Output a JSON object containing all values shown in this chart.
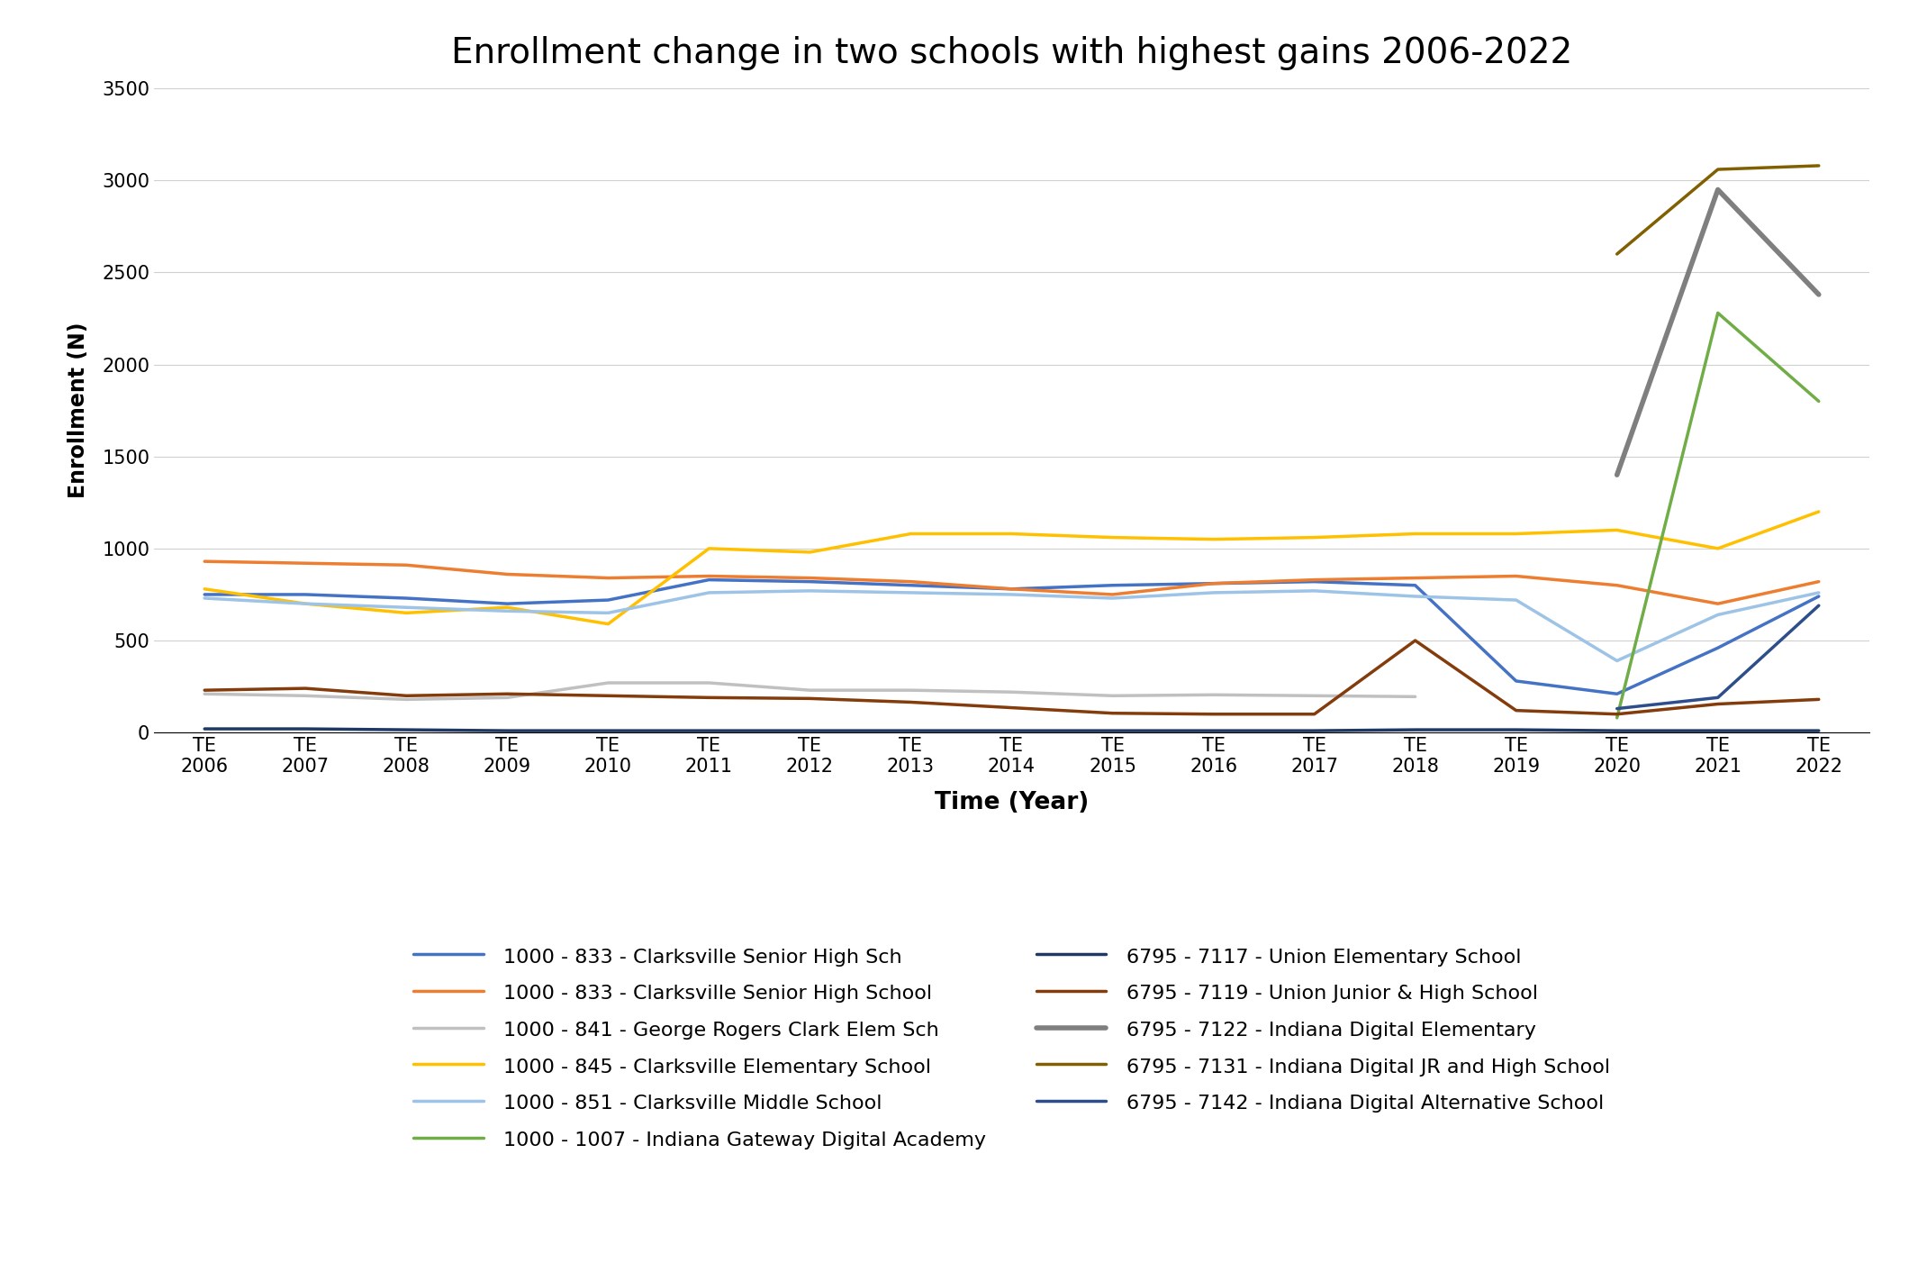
{
  "title": "Enrollment change in two schools with highest gains 2006-2022",
  "xlabel": "Time (Year)",
  "ylabel": "Enrollment (N)",
  "years": [
    2006,
    2007,
    2008,
    2009,
    2010,
    2011,
    2012,
    2013,
    2014,
    2015,
    2016,
    2017,
    2018,
    2019,
    2020,
    2021,
    2022
  ],
  "ylim": [
    0,
    3500
  ],
  "yticks": [
    0,
    500,
    1000,
    1500,
    2000,
    2500,
    3000,
    3500
  ],
  "series": [
    {
      "label": "1000 - 833 - Clarksville Senior High Sch",
      "color": "#4472C4",
      "linewidth": 2.5,
      "data": [
        750,
        750,
        730,
        700,
        720,
        830,
        820,
        800,
        780,
        800,
        810,
        820,
        800,
        280,
        210,
        460,
        740
      ]
    },
    {
      "label": "1000 - 833 - Clarksville Senior High School",
      "color": "#ED7D31",
      "linewidth": 2.5,
      "data": [
        930,
        920,
        910,
        860,
        840,
        850,
        840,
        820,
        780,
        750,
        810,
        830,
        840,
        850,
        800,
        700,
        820
      ]
    },
    {
      "label": "1000 - 841 - George Rogers Clark Elem Sch",
      "color": "#C0C0C0",
      "linewidth": 2.5,
      "data": [
        210,
        200,
        180,
        190,
        270,
        270,
        230,
        230,
        220,
        200,
        205,
        200,
        195,
        null,
        null,
        null,
        null
      ]
    },
    {
      "label": "1000 - 845 - Clarksville Elementary School",
      "color": "#FFC000",
      "linewidth": 2.5,
      "data": [
        780,
        700,
        650,
        680,
        590,
        1000,
        980,
        1080,
        1080,
        1060,
        1050,
        1060,
        1080,
        1080,
        1100,
        1000,
        1200
      ]
    },
    {
      "label": "1000 - 851 - Clarksville Middle School",
      "color": "#9DC3E6",
      "linewidth": 2.5,
      "data": [
        730,
        700,
        680,
        660,
        650,
        760,
        770,
        760,
        750,
        730,
        760,
        770,
        740,
        720,
        390,
        640,
        760
      ]
    },
    {
      "label": "1000 - 1007 - Indiana Gateway Digital Academy",
      "color": "#70AD47",
      "linewidth": 2.5,
      "data": [
        null,
        null,
        null,
        null,
        null,
        null,
        null,
        null,
        null,
        null,
        null,
        null,
        null,
        null,
        80,
        2280,
        1800
      ]
    },
    {
      "label": "6795 - 7117 - Union Elementary School",
      "color": "#1F3864",
      "linewidth": 2.5,
      "data": [
        20,
        20,
        15,
        10,
        10,
        10,
        10,
        10,
        10,
        10,
        10,
        10,
        15,
        15,
        10,
        10,
        10
      ]
    },
    {
      "label": "6795 - 7119 - Union Junior & High School",
      "color": "#843C0C",
      "linewidth": 2.5,
      "data": [
        230,
        240,
        200,
        210,
        200,
        190,
        185,
        165,
        135,
        105,
        100,
        100,
        500,
        120,
        100,
        155,
        180
      ]
    },
    {
      "label": "6795 - 7122 - Indiana Digital Elementary",
      "color": "#7F7F7F",
      "linewidth": 4.0,
      "data": [
        null,
        null,
        null,
        null,
        null,
        null,
        null,
        null,
        null,
        null,
        null,
        null,
        null,
        null,
        1400,
        2950,
        2380
      ]
    },
    {
      "label": "6795 - 7131 - Indiana Digital JR and High School",
      "color": "#806000",
      "linewidth": 2.5,
      "data": [
        null,
        null,
        null,
        null,
        null,
        null,
        null,
        null,
        null,
        null,
        null,
        null,
        null,
        null,
        2600,
        3060,
        3080
      ]
    },
    {
      "label": "6795 - 7142 - Indiana Digital Alternative School",
      "color": "#2E4E8B",
      "linewidth": 2.5,
      "data": [
        null,
        null,
        null,
        null,
        null,
        null,
        null,
        null,
        null,
        null,
        null,
        null,
        null,
        null,
        130,
        190,
        690
      ]
    }
  ],
  "legend_order": [
    0,
    1,
    2,
    3,
    4,
    5,
    6,
    7,
    8,
    9,
    10
  ]
}
